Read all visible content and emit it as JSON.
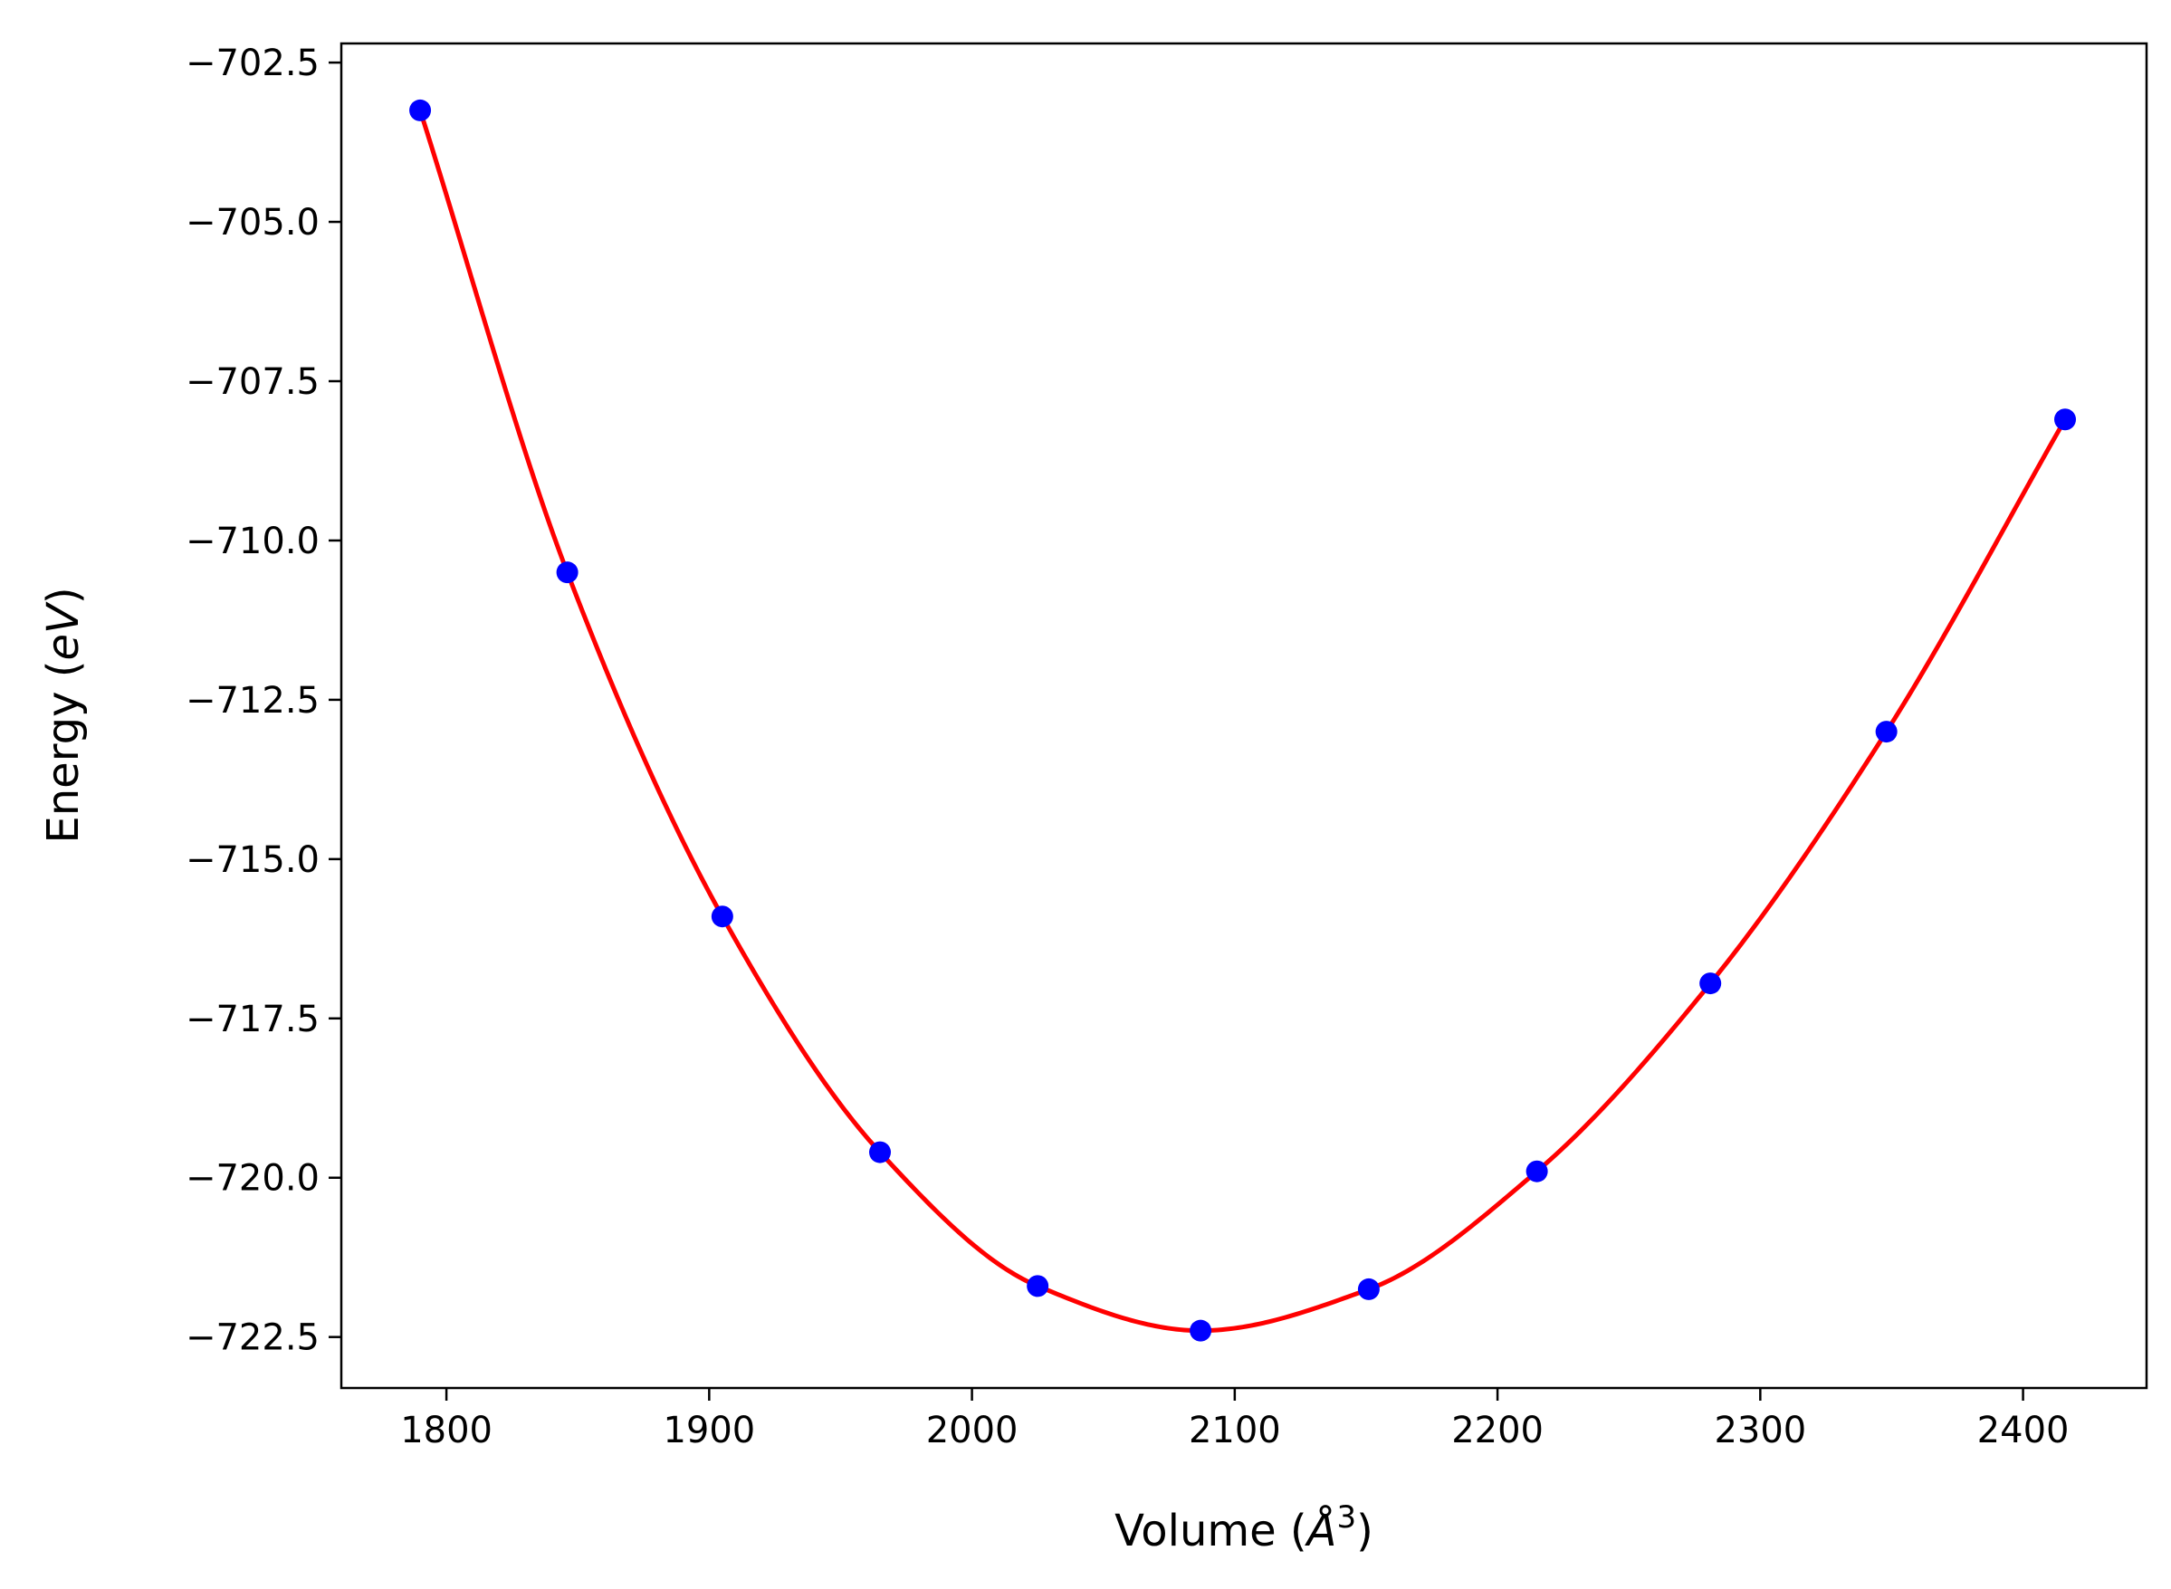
{
  "chart_data": {
    "type": "scatter",
    "xlabel": "Volume (Å³)",
    "ylabel": "Energy (eV)",
    "xlabel_parts": {
      "prefix": "Volume (",
      "unit": "Å",
      "sup": "3",
      "suffix": ")"
    },
    "ylabel_parts": {
      "prefix": "Energy (",
      "unit": "eV",
      "suffix": ")"
    },
    "xlim": [
      1760,
      2447
    ],
    "ylim": [
      -723.3,
      -702.2
    ],
    "xticks": [
      1800,
      1900,
      2000,
      2100,
      2200,
      2300,
      2400
    ],
    "yticks": [
      -702.5,
      -705.0,
      -707.5,
      -710.0,
      -712.5,
      -715.0,
      -717.5,
      -720.0,
      -722.5
    ],
    "grid": false,
    "series": [
      {
        "kind": "points",
        "color": "#0000ff",
        "x": [
          1790,
          1846,
          1905,
          1965,
          2025,
          2087,
          2151,
          2215,
          2281,
          2348,
          2416
        ],
        "y": [
          -703.25,
          -710.5,
          -715.9,
          -719.6,
          -721.7,
          -722.4,
          -721.75,
          -719.9,
          -716.95,
          -713.0,
          -708.1
        ]
      },
      {
        "kind": "fit-curve",
        "color": "#ff0000",
        "x": [
          1790,
          1846,
          1905,
          1965,
          2025,
          2087,
          2151,
          2215,
          2281,
          2348,
          2416
        ],
        "y": [
          -703.25,
          -710.5,
          -715.9,
          -719.6,
          -721.7,
          -722.4,
          -721.75,
          -719.9,
          -716.95,
          -713.0,
          -708.1
        ]
      }
    ]
  }
}
